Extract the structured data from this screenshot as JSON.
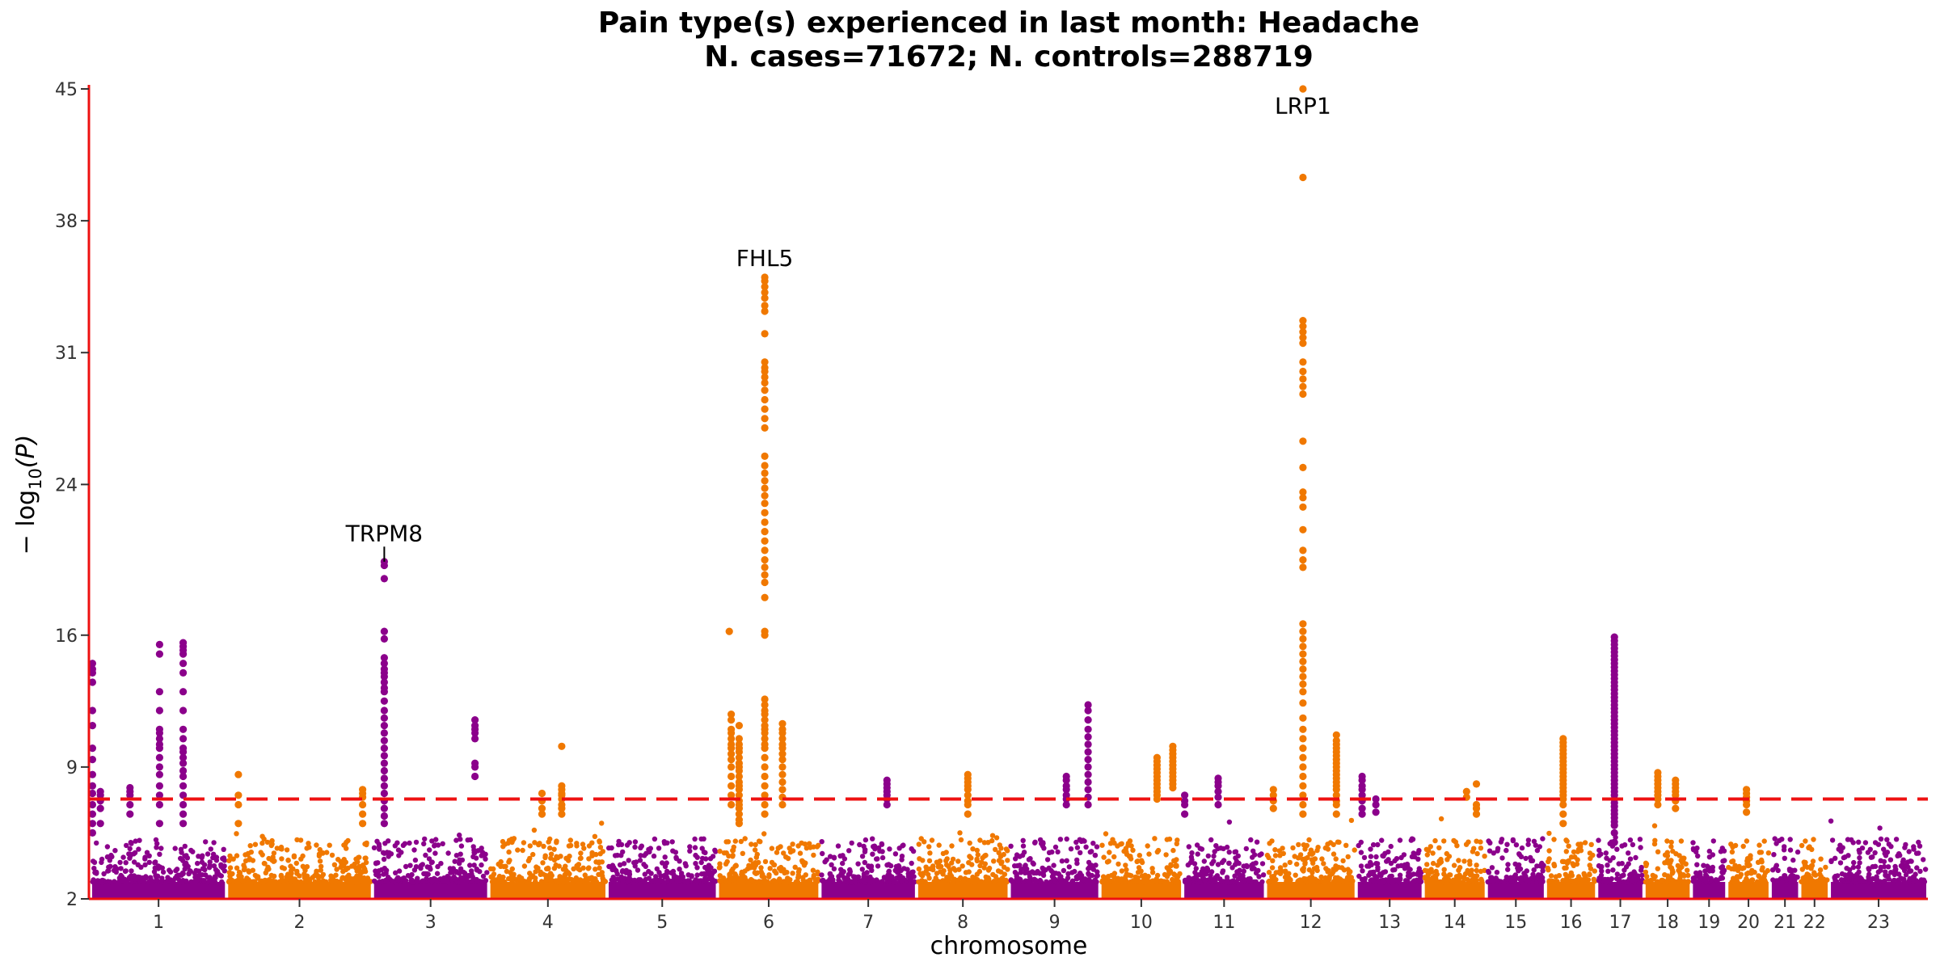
{
  "chart_data": {
    "type": "scatter",
    "subtype": "manhattan",
    "title_line1": "Pain type(s) experienced in last month: Headache",
    "title_line2": "N. cases=71672; N. controls=288719",
    "xlabel": "chromosome",
    "ylabel_main": "− log",
    "ylabel_sub": "10",
    "ylabel_tail": "(P)",
    "ylim": [
      2,
      45
    ],
    "yticks": [
      2,
      9,
      16,
      24,
      31,
      38,
      45
    ],
    "significance_threshold": 7.3,
    "colors": {
      "purple": "#8B008B",
      "orange": "#F07800",
      "threshold": "#EE1111",
      "axis": "#EE1111"
    },
    "chromosomes": [
      {
        "label": "1",
        "start": 0.0,
        "end": 3.45,
        "color": "purple"
      },
      {
        "label": "2",
        "start": 3.45,
        "end": 7.15,
        "color": "orange"
      },
      {
        "label": "3",
        "start": 7.15,
        "end": 10.1,
        "color": "purple"
      },
      {
        "label": "4",
        "start": 10.1,
        "end": 13.1,
        "color": "orange"
      },
      {
        "label": "5",
        "start": 13.1,
        "end": 15.9,
        "color": "purple"
      },
      {
        "label": "6",
        "start": 15.9,
        "end": 18.5,
        "color": "orange"
      },
      {
        "label": "7",
        "start": 18.5,
        "end": 20.95,
        "color": "purple"
      },
      {
        "label": "8",
        "start": 20.95,
        "end": 23.3,
        "color": "orange"
      },
      {
        "label": "9",
        "start": 23.3,
        "end": 25.6,
        "color": "purple"
      },
      {
        "label": "10",
        "start": 25.6,
        "end": 27.7,
        "color": "orange"
      },
      {
        "label": "11",
        "start": 27.7,
        "end": 29.8,
        "color": "purple"
      },
      {
        "label": "12",
        "start": 29.8,
        "end": 32.1,
        "color": "orange"
      },
      {
        "label": "13",
        "start": 32.1,
        "end": 33.8,
        "color": "purple"
      },
      {
        "label": "14",
        "start": 33.8,
        "end": 35.4,
        "color": "orange"
      },
      {
        "label": "15",
        "start": 35.4,
        "end": 36.9,
        "color": "purple"
      },
      {
        "label": "16",
        "start": 36.9,
        "end": 38.2,
        "color": "orange"
      },
      {
        "label": "17",
        "start": 38.2,
        "end": 39.4,
        "color": "purple"
      },
      {
        "label": "18",
        "start": 39.4,
        "end": 40.6,
        "color": "orange"
      },
      {
        "label": "19",
        "start": 40.6,
        "end": 41.5,
        "color": "purple"
      },
      {
        "label": "20",
        "start": 41.5,
        "end": 42.6,
        "color": "orange"
      },
      {
        "label": "21",
        "start": 42.6,
        "end": 43.35,
        "color": "purple"
      },
      {
        "label": "22",
        "start": 43.35,
        "end": 44.1,
        "color": "orange"
      },
      {
        "label": "23",
        "start": 44.1,
        "end": 46.6,
        "color": "purple"
      }
    ],
    "peaks": [
      {
        "x": 0.05,
        "ys": [
          14.5,
          14.2,
          14.0,
          13.5,
          12.0,
          11.2,
          10.0,
          9.4,
          8.6,
          8.0,
          7.6,
          7.0,
          6.5,
          6.0,
          5.5
        ]
      },
      {
        "x": 0.25,
        "ys": [
          7.7,
          7.5,
          7.2,
          6.8,
          6.0
        ]
      },
      {
        "x": 1.0,
        "ys": [
          7.9,
          7.7,
          7.5,
          7.0,
          6.5
        ]
      },
      {
        "x": 1.75,
        "ys": [
          15.5,
          15.0,
          13.0,
          12.0,
          11.0,
          10.8,
          10.5,
          10.2,
          10.0,
          9.5,
          9.0,
          8.6,
          8.0,
          7.5,
          7.0,
          6.0
        ]
      },
      {
        "x": 2.35,
        "ys": [
          15.6,
          15.4,
          15.2,
          15.0,
          14.5,
          14.0,
          13.0,
          12.0,
          11.0,
          10.5,
          10.0,
          9.8,
          9.5,
          9.2,
          8.8,
          8.5,
          8.0,
          7.5,
          7.0,
          6.5,
          6.0
        ]
      },
      {
        "x": 3.75,
        "ys": [
          8.6,
          7.5,
          7.0,
          6.0
        ]
      },
      {
        "x": 6.9,
        "ys": [
          7.8,
          7.6,
          7.4,
          7.0,
          6.5,
          6.0
        ]
      },
      {
        "x": 7.45,
        "ys": [
          19.9,
          19.7,
          19.0,
          16.2,
          15.8,
          14.8,
          14.5,
          14.2,
          14.0,
          13.8,
          13.5,
          13.2,
          13.0,
          12.5,
          12.0,
          11.6,
          11.2,
          10.8,
          10.4,
          10.0,
          9.6,
          9.2,
          8.8,
          8.4,
          8.0,
          7.6,
          7.2,
          6.8,
          6.4,
          6.0
        ]
      },
      {
        "x": 9.75,
        "ys": [
          11.5,
          11.2,
          11.0,
          10.8,
          10.5,
          9.2,
          9.0,
          8.5
        ]
      },
      {
        "x": 11.45,
        "ys": [
          7.6,
          7.2,
          6.8,
          6.5
        ]
      },
      {
        "x": 11.95,
        "ys": [
          10.1,
          8.0,
          7.8,
          7.6,
          7.5,
          7.3,
          7.0,
          6.8,
          6.5
        ]
      },
      {
        "x": 16.2,
        "ys": [
          16.2
        ]
      },
      {
        "x": 16.25,
        "ys": [
          11.8,
          11.5,
          11.0,
          10.8,
          10.5,
          10.2,
          10.0,
          9.7,
          9.4,
          9.0,
          8.5,
          8.0,
          7.5,
          7.0
        ]
      },
      {
        "x": 16.45,
        "ys": [
          11.2,
          10.5,
          10.2,
          10.0,
          9.8,
          9.5,
          9.2,
          9.0,
          8.8,
          8.5,
          8.2,
          8.0,
          7.8,
          7.5,
          7.2,
          7.0,
          6.8,
          6.5,
          6.2,
          6.0
        ]
      },
      {
        "x": 17.1,
        "ys": [
          35.0,
          34.8,
          34.5,
          34.2,
          33.9,
          33.5,
          33.2,
          32.0,
          30.5,
          30.2,
          30.0,
          29.7,
          29.4,
          29.0,
          28.5,
          28.0,
          27.5,
          27.0,
          25.5,
          25.0,
          24.6,
          24.2,
          23.8,
          23.4,
          23.0,
          22.5,
          22.0,
          21.5,
          21.0,
          20.5,
          20.0,
          19.6,
          19.2,
          18.8,
          18.0,
          16.2,
          16.0,
          12.6,
          12.3,
          12.0,
          11.8,
          11.5,
          11.2,
          11.0,
          10.8,
          10.5,
          10.2,
          10.0,
          9.5,
          9.0,
          8.5,
          8.0,
          7.5,
          7.0,
          6.5
        ]
      },
      {
        "x": 17.55,
        "ys": [
          11.3,
          11.0,
          10.8,
          10.5,
          10.2,
          10.0,
          9.7,
          9.4,
          9.0,
          8.6,
          8.2,
          7.8,
          7.4,
          7.0
        ]
      },
      {
        "x": 20.2,
        "ys": [
          8.3,
          8.1,
          7.9,
          7.7,
          7.5,
          7.3,
          7.0
        ]
      },
      {
        "x": 22.25,
        "ys": [
          8.6,
          8.4,
          8.2,
          8.0,
          7.8,
          7.5,
          7.2,
          7.0,
          6.5
        ]
      },
      {
        "x": 24.75,
        "ys": [
          8.5,
          8.3,
          8.0,
          7.8,
          7.5,
          7.3,
          7.0
        ]
      },
      {
        "x": 25.3,
        "ys": [
          12.3,
          12.0,
          11.5,
          11.0,
          10.6,
          10.2,
          9.8,
          9.4,
          9.0,
          8.6,
          8.2,
          7.8,
          7.4,
          7.0
        ]
      },
      {
        "x": 27.05,
        "ys": [
          9.5,
          9.3,
          9.1,
          8.9,
          8.7,
          8.5,
          8.3,
          8.1,
          7.9,
          7.7,
          7.5,
          7.3
        ]
      },
      {
        "x": 27.45,
        "ys": [
          10.1,
          9.9,
          9.7,
          9.5,
          9.3,
          9.1,
          8.9,
          8.7,
          8.5,
          8.3,
          8.1,
          7.9
        ]
      },
      {
        "x": 27.75,
        "ys": [
          7.5,
          7.2,
          7.0,
          6.5
        ]
      },
      {
        "x": 28.6,
        "ys": [
          8.4,
          8.2,
          8.0,
          7.7,
          7.4,
          7.0
        ]
      },
      {
        "x": 30.0,
        "ys": [
          7.8,
          7.5,
          7.2,
          6.8
        ]
      },
      {
        "x": 30.75,
        "ys": [
          45.0,
          40.3,
          32.7,
          32.4,
          32.1,
          31.8,
          31.5,
          30.5,
          30.0,
          29.6,
          29.2,
          28.8,
          26.3,
          24.9,
          23.6,
          23.3,
          22.8,
          21.6,
          20.5,
          20.0,
          19.6,
          16.6,
          16.2,
          15.8,
          15.4,
          15.0,
          14.6,
          14.2,
          13.8,
          13.4,
          13.0,
          12.4,
          11.6,
          11.0,
          10.5,
          10.0,
          9.5,
          9.0,
          8.5,
          8.0,
          7.5,
          7.0,
          6.5
        ]
      },
      {
        "x": 31.6,
        "ys": [
          10.7,
          10.4,
          10.2,
          10.0,
          9.8,
          9.6,
          9.4,
          9.2,
          9.0,
          8.8,
          8.6,
          8.4,
          8.2,
          8.0,
          7.8,
          7.5,
          7.2,
          7.0,
          6.5
        ]
      },
      {
        "x": 32.25,
        "ys": [
          8.5,
          8.3,
          8.0,
          7.8,
          7.5,
          7.2,
          6.8,
          6.5
        ]
      },
      {
        "x": 32.6,
        "ys": [
          7.3,
          7.0,
          6.6
        ]
      },
      {
        "x": 34.9,
        "ys": [
          7.7,
          7.4
        ]
      },
      {
        "x": 35.15,
        "ys": [
          8.1,
          7.0,
          6.8,
          6.5
        ]
      },
      {
        "x": 37.35,
        "ys": [
          10.5,
          10.3,
          10.1,
          9.9,
          9.7,
          9.5,
          9.3,
          9.1,
          8.9,
          8.7,
          8.5,
          8.3,
          8.1,
          7.9,
          7.7,
          7.5,
          7.3,
          7.0,
          6.5,
          6.0
        ]
      },
      {
        "x": 38.65,
        "ys": [
          15.9,
          15.7,
          15.5,
          15.3,
          15.1,
          14.9,
          14.7,
          14.5,
          14.3,
          14.1,
          13.9,
          13.7,
          13.5,
          13.3,
          13.1,
          12.9,
          12.7,
          12.5,
          12.3,
          12.1,
          11.9,
          11.7,
          11.5,
          11.3,
          11.1,
          10.9,
          10.7,
          10.5,
          10.3,
          10.1,
          9.9,
          9.7,
          9.5,
          9.3,
          9.1,
          8.9,
          8.7,
          8.5,
          8.3,
          8.1,
          7.9,
          7.7,
          7.5,
          7.3,
          7.1,
          6.9,
          6.7,
          6.5,
          6.3,
          6.1,
          5.9,
          5.5,
          5.0
        ]
      },
      {
        "x": 39.75,
        "ys": [
          8.7,
          8.5,
          8.3,
          8.1,
          7.9,
          7.7,
          7.5,
          7.3,
          7.0
        ]
      },
      {
        "x": 40.2,
        "ys": [
          8.3,
          8.1,
          7.9,
          7.7,
          7.5,
          7.2,
          6.8
        ]
      },
      {
        "x": 42.0,
        "ys": [
          7.8,
          7.6,
          7.4,
          7.2,
          7.0,
          6.6
        ]
      }
    ],
    "gene_labels": [
      {
        "text": "TRPM8",
        "x": 7.45,
        "y": 21.0,
        "segment_top": 20.7,
        "segment_bottom": 19.9
      },
      {
        "text": "FHL5",
        "x": 17.1,
        "y": 35.6
      },
      {
        "text": "LRP1",
        "x": 30.75,
        "y": 43.7
      }
    ]
  }
}
